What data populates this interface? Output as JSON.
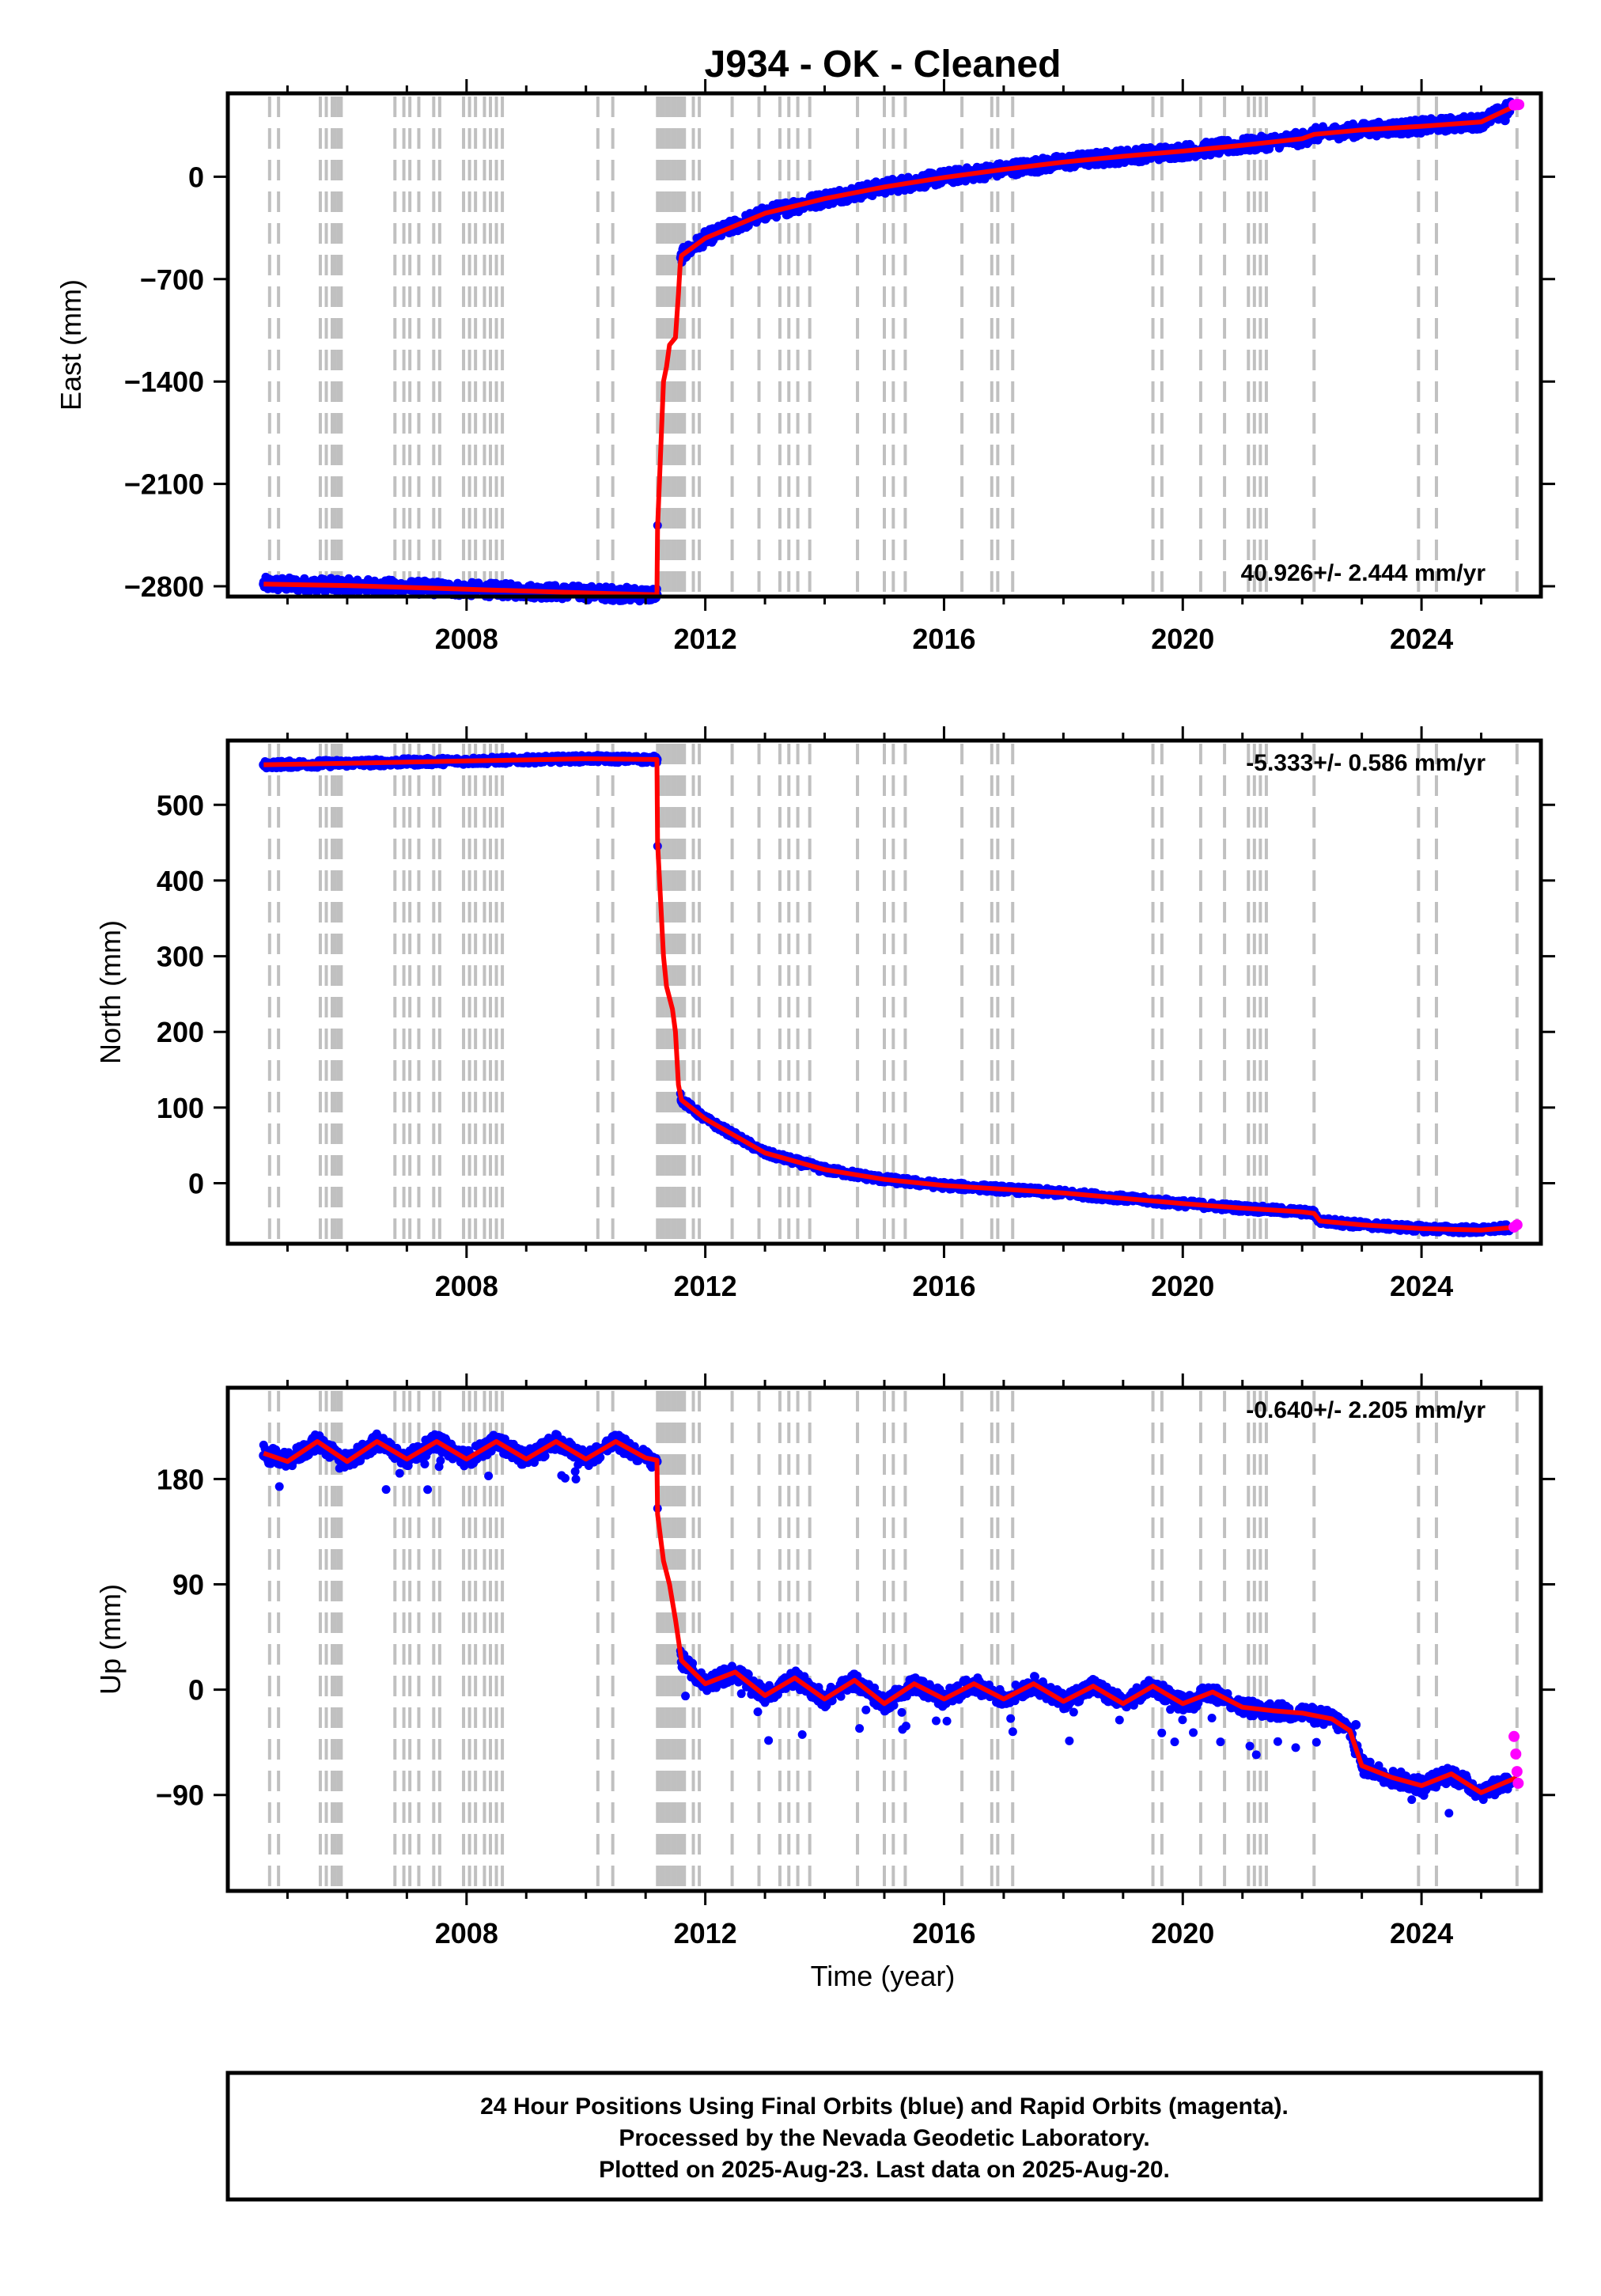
{
  "figure": {
    "title": "J934  - OK - Cleaned",
    "xlabel": "Time (year)",
    "colors": {
      "final_orbits": "#0000ff",
      "rapid_orbits": "#ff00ff",
      "model": "#ff0000",
      "step_lines": "#c0c0c0",
      "frame": "#000000"
    },
    "footer": {
      "line1": "24 Hour Positions Using Final Orbits (blue) and Rapid Orbits (magenta).",
      "line2": "Processed by the Nevada Geodetic Laboratory.",
      "line3": "Plotted on 2025-Aug-23. Last data on 2025-Aug-20."
    }
  },
  "chart_data": [
    {
      "type": "scatter",
      "component": "east",
      "ylabel": "East (mm)",
      "xlim": [
        2004.0,
        2026.0
      ],
      "ylim": [
        -2870,
        570
      ],
      "xticks": [
        2008,
        2012,
        2016,
        2020,
        2024
      ],
      "yticks": [
        0,
        -700,
        -1400,
        -2100,
        -2800
      ],
      "rate_label": "40.926+/- 2.444 mm/yr",
      "rate_position": "bottom-right",
      "series": [
        {
          "role": "final_orbits_points",
          "x": [
            2004.6,
            2005.0,
            2005.5,
            2006.0,
            2006.5,
            2007.0,
            2007.5,
            2008.0,
            2008.5,
            2009.0,
            2009.5,
            2010.0,
            2010.5,
            2011.0,
            2011.19,
            2011.6,
            2012.0,
            2012.5,
            2013.0,
            2013.5,
            2014.0,
            2014.5,
            2015.0,
            2015.5,
            2016.0,
            2016.5,
            2017.0,
            2017.5,
            2018.0,
            2018.5,
            2019.0,
            2019.5,
            2020.0,
            2020.5,
            2021.0,
            2021.5,
            2022.0,
            2022.5,
            2023.0,
            2023.5,
            2024.0,
            2024.5,
            2025.0,
            2025.4
          ],
          "y": [
            -2785,
            -2790,
            -2800,
            -2790,
            -2800,
            -2805,
            -2815,
            -2820,
            -2830,
            -2835,
            -2840,
            -2845,
            -2850,
            -2855,
            -2858,
            -530,
            -420,
            -320,
            -250,
            -195,
            -150,
            -110,
            -70,
            -40,
            -5,
            20,
            50,
            75,
            100,
            120,
            140,
            160,
            175,
            195,
            215,
            240,
            270,
            290,
            315,
            330,
            345,
            360,
            375,
            385
          ]
        },
        {
          "role": "rapid_orbits_points",
          "x": [
            2025.55,
            2025.6,
            2025.63
          ],
          "y": [
            490,
            495,
            493
          ]
        },
        {
          "role": "model_line",
          "x": [
            2004.6,
            2006.0,
            2008.0,
            2010.0,
            2011.19,
            2011.2,
            2011.3,
            2011.35,
            2011.4,
            2011.5,
            2011.55,
            2011.58,
            2011.6,
            2012.0,
            2013.0,
            2014.0,
            2015.0,
            2016.0,
            2017.0,
            2018.0,
            2019.0,
            2020.0,
            2021.0,
            2022.0,
            2022.2,
            2023.0,
            2024.0,
            2025.0,
            2025.6
          ],
          "y": [
            -2785,
            -2795,
            -2820,
            -2845,
            -2858,
            -2400,
            -1400,
            -1300,
            -1150,
            -1100,
            -800,
            -600,
            -540,
            -420,
            -250,
            -150,
            -70,
            -5,
            50,
            100,
            140,
            175,
            215,
            260,
            290,
            320,
            345,
            375,
            490
          ]
        }
      ]
    },
    {
      "type": "scatter",
      "component": "north",
      "ylabel": "North (mm)",
      "xlim": [
        2004.0,
        2026.0
      ],
      "ylim": [
        -80,
        585
      ],
      "xticks": [
        2008,
        2012,
        2016,
        2020,
        2024
      ],
      "yticks": [
        0,
        100,
        200,
        300,
        400,
        500
      ],
      "rate_label": "-5.333+/- 0.586 mm/yr",
      "rate_position": "top-right",
      "series": [
        {
          "role": "final_orbits_points",
          "x": [
            2004.6,
            2005.0,
            2005.5,
            2006.0,
            2006.5,
            2007.0,
            2007.5,
            2008.0,
            2008.5,
            2009.0,
            2009.5,
            2010.0,
            2010.5,
            2011.0,
            2011.19,
            2011.6,
            2012.0,
            2012.5,
            2013.0,
            2013.5,
            2014.0,
            2014.5,
            2015.0,
            2015.5,
            2016.0,
            2016.5,
            2017.0,
            2017.5,
            2018.0,
            2018.5,
            2019.0,
            2019.5,
            2020.0,
            2020.5,
            2021.0,
            2021.5,
            2022.0,
            2022.3,
            2022.5,
            2023.0,
            2023.5,
            2024.0,
            2024.5,
            2025.0,
            2025.4
          ],
          "y": [
            553,
            552,
            550,
            555,
            553,
            555,
            556,
            558,
            560,
            558,
            560,
            561,
            560,
            562,
            560,
            110,
            85,
            60,
            40,
            28,
            18,
            10,
            5,
            0,
            -3,
            -5,
            -8,
            -10,
            -13,
            -17,
            -20,
            -24,
            -27,
            -30,
            -33,
            -36,
            -38,
            -50,
            -52,
            -55,
            -58,
            -60,
            -62,
            -62,
            -63
          ]
        },
        {
          "role": "rapid_orbits_points",
          "x": [
            2025.55,
            2025.6
          ],
          "y": [
            -58,
            -55
          ]
        },
        {
          "role": "model_line",
          "x": [
            2004.6,
            2006.0,
            2008.0,
            2010.0,
            2011.19,
            2011.2,
            2011.3,
            2011.35,
            2011.45,
            2011.5,
            2011.55,
            2011.6,
            2012.0,
            2013.0,
            2014.0,
            2015.0,
            2016.0,
            2017.0,
            2018.0,
            2019.0,
            2020.0,
            2021.0,
            2022.0,
            2022.2,
            2022.3,
            2023.0,
            2024.0,
            2025.0,
            2025.6
          ],
          "y": [
            553,
            555,
            558,
            561,
            560,
            450,
            300,
            260,
            230,
            200,
            130,
            110,
            85,
            40,
            18,
            5,
            -3,
            -8,
            -13,
            -20,
            -27,
            -33,
            -38,
            -40,
            -50,
            -55,
            -60,
            -62,
            -58
          ]
        }
      ]
    },
    {
      "type": "scatter",
      "component": "up",
      "ylabel": "Up (mm)",
      "xlim": [
        2004.0,
        2026.0
      ],
      "ylim": [
        -172,
        258
      ],
      "xticks": [
        2008,
        2012,
        2016,
        2020,
        2024
      ],
      "yticks": [
        180,
        90,
        0,
        -90
      ],
      "rate_label": "-0.640+/- 2.205 mm/yr",
      "rate_position": "top-right",
      "series": [
        {
          "role": "final_orbits_points",
          "x": [
            2004.6,
            2005.0,
            2005.5,
            2006.0,
            2006.5,
            2007.0,
            2007.5,
            2008.0,
            2008.5,
            2009.0,
            2009.5,
            2010.0,
            2010.5,
            2011.0,
            2011.19,
            2011.6,
            2012.0,
            2012.5,
            2013.0,
            2013.5,
            2014.0,
            2014.5,
            2015.0,
            2015.5,
            2016.0,
            2016.5,
            2017.0,
            2017.5,
            2018.0,
            2018.5,
            2019.0,
            2019.5,
            2020.0,
            2020.5,
            2021.0,
            2021.5,
            2022.0,
            2022.5,
            2022.9,
            2023.0,
            2023.5,
            2024.0,
            2024.5,
            2025.0,
            2025.4
          ],
          "y": [
            200,
            195,
            210,
            195,
            215,
            200,
            215,
            198,
            215,
            200,
            215,
            198,
            215,
            200,
            195,
            30,
            10,
            15,
            0,
            10,
            -5,
            10,
            -10,
            5,
            -5,
            5,
            -5,
            5,
            -10,
            5,
            -10,
            5,
            -10,
            0,
            -10,
            -15,
            -15,
            -20,
            -30,
            -65,
            -75,
            -80,
            -70,
            -85,
            -75
          ]
        },
        {
          "role": "rapid_orbits_points",
          "x": [
            2025.55,
            2025.58,
            2025.6,
            2025.62
          ],
          "y": [
            -40,
            -55,
            -70,
            -80
          ]
        },
        {
          "role": "model_line",
          "x": [
            2004.6,
            2005.0,
            2005.5,
            2006.0,
            2006.5,
            2007.0,
            2007.5,
            2008.0,
            2008.5,
            2009.0,
            2009.5,
            2010.0,
            2010.5,
            2011.0,
            2011.19,
            2011.2,
            2011.3,
            2011.4,
            2011.5,
            2011.6,
            2012.0,
            2012.5,
            2013.0,
            2013.5,
            2014.0,
            2014.5,
            2015.0,
            2015.5,
            2016.0,
            2016.5,
            2017.0,
            2017.5,
            2018.0,
            2018.5,
            2019.0,
            2019.5,
            2020.0,
            2020.5,
            2021.0,
            2021.5,
            2022.0,
            2022.5,
            2022.8,
            2023.0,
            2023.5,
            2024.0,
            2024.5,
            2025.0,
            2025.6
          ],
          "y": [
            202,
            195,
            212,
            195,
            212,
            197,
            212,
            197,
            212,
            197,
            212,
            197,
            212,
            198,
            196,
            150,
            110,
            90,
            60,
            25,
            5,
            15,
            -5,
            10,
            -8,
            8,
            -12,
            5,
            -8,
            5,
            -8,
            5,
            -10,
            3,
            -12,
            3,
            -12,
            -2,
            -15,
            -18,
            -20,
            -25,
            -35,
            -65,
            -75,
            -82,
            -72,
            -88,
            -75
          ]
        }
      ]
    }
  ],
  "step_epochs": [
    2004.7,
    2004.85,
    2005.55,
    2005.65,
    2005.75,
    2005.8,
    2005.85,
    2005.9,
    2006.8,
    2006.95,
    2007.05,
    2007.2,
    2007.45,
    2007.55,
    2007.95,
    2008.05,
    2008.15,
    2008.3,
    2008.4,
    2008.5,
    2008.6,
    2010.2,
    2010.45,
    2011.2,
    2011.25,
    2011.3,
    2011.35,
    2011.4,
    2011.45,
    2011.5,
    2011.55,
    2011.6,
    2011.65,
    2011.8,
    2011.9,
    2012.45,
    2012.9,
    2013.25,
    2013.4,
    2013.55,
    2013.75,
    2014.55,
    2015.0,
    2015.15,
    2015.35,
    2016.3,
    2016.8,
    2016.9,
    2017.15,
    2019.5,
    2019.65,
    2020.3,
    2020.7,
    2021.1,
    2021.2,
    2021.3,
    2021.4,
    2022.2,
    2023.95,
    2024.25,
    2025.6
  ]
}
